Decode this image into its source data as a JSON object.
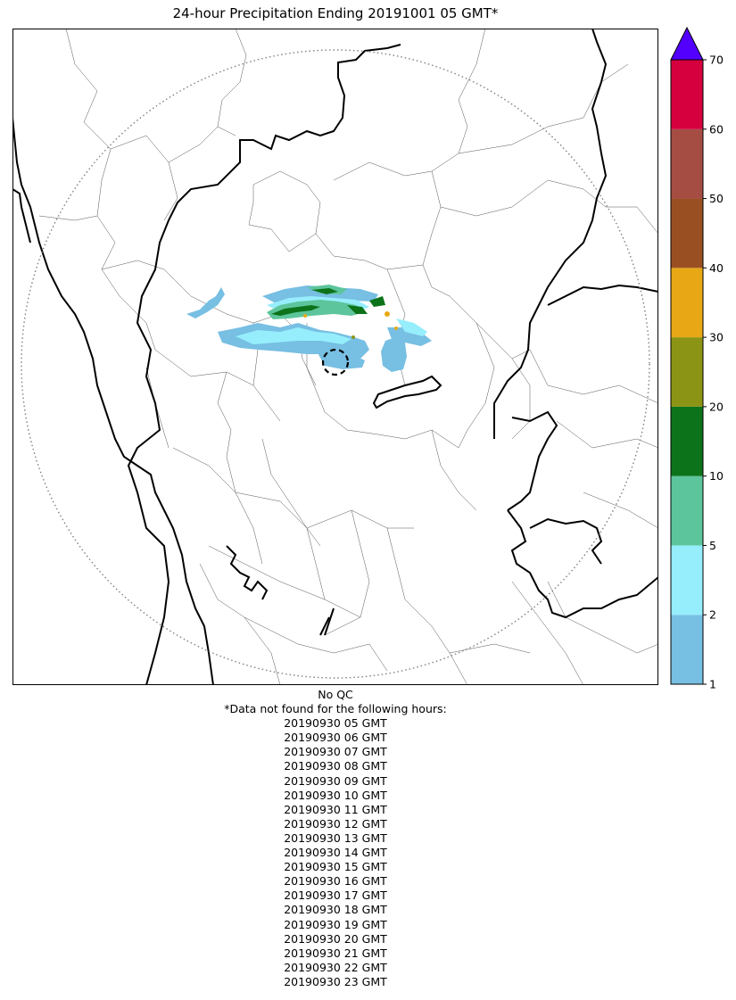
{
  "title": "24-hour Precipitation Ending 20191001 05 GMT*",
  "colorbar": {
    "ticks": [
      "1",
      "2",
      "5",
      "10",
      "20",
      "30",
      "40",
      "50",
      "60",
      "70"
    ],
    "colors": [
      "#77bfe3",
      "#96eefc",
      "#5dc59b",
      "#0d731a",
      "#8b9415",
      "#e8a816",
      "#9a4f23",
      "#a54c43",
      "#d6003f"
    ],
    "extend_color": "#5400ff"
  },
  "map_features": [
    "state-boundaries",
    "district-boundaries",
    "coastline",
    "radar-range-ring",
    "radar-center-circle",
    "precipitation-cells"
  ],
  "footer": {
    "qc_text": "No QC",
    "missing_header": "*Data not found for the following hours:",
    "missing_hours": [
      "20190930 05 GMT",
      "20190930 06 GMT",
      "20190930 07 GMT",
      "20190930 08 GMT",
      "20190930 09 GMT",
      "20190930 10 GMT",
      "20190930 11 GMT",
      "20190930 12 GMT",
      "20190930 13 GMT",
      "20190930 14 GMT",
      "20190930 15 GMT",
      "20190930 16 GMT",
      "20190930 17 GMT",
      "20190930 18 GMT",
      "20190930 19 GMT",
      "20190930 20 GMT",
      "20190930 21 GMT",
      "20190930 22 GMT",
      "20190930 23 GMT"
    ]
  }
}
